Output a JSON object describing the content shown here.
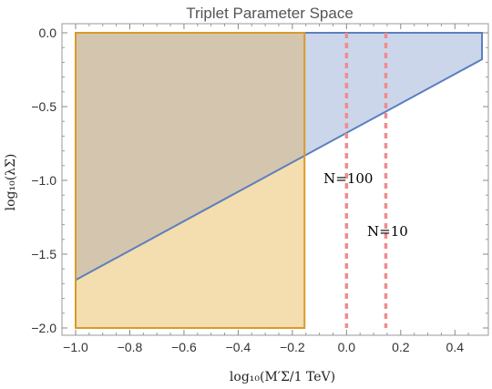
{
  "chart_data": {
    "type": "area",
    "title": "Triplet Parameter Space",
    "xlabel": "log₁₀(M′Σ/1 TeV)",
    "ylabel": "log₁₀(λΣ)",
    "xlim": [
      -1.0,
      0.5
    ],
    "ylim": [
      -2.0,
      0.0
    ],
    "x_ticks": [
      "-1.0",
      "-0.8",
      "-0.6",
      "-0.4",
      "-0.2",
      "0.0",
      "0.2",
      "0.4"
    ],
    "y_ticks": [
      "0.0",
      "-0.5",
      "-1.0",
      "-1.5",
      "-2.0"
    ],
    "x_tick_values": [
      -1.0,
      -0.8,
      -0.6,
      -0.4,
      -0.2,
      0.0,
      0.2,
      0.4
    ],
    "y_tick_values": [
      0.0,
      -0.5,
      -1.0,
      -1.5,
      -2.0
    ],
    "grid": false,
    "regions": [
      {
        "fill": "#c9d4ea",
        "stroke": "#5b7fbf",
        "polygon": [
          [
            -1.0,
            -1.675
          ],
          [
            0.5,
            -0.18
          ],
          [
            0.5,
            0.0
          ],
          [
            -1.0,
            0.0
          ]
        ]
      },
      {
        "fill": "#f3dbaa",
        "stroke": "#d89a2a",
        "polygon": [
          [
            -1.0,
            -2.0
          ],
          [
            -0.155,
            -2.0
          ],
          [
            -0.155,
            0.0
          ],
          [
            -1.0,
            0.0
          ]
        ]
      }
    ],
    "boundary_line": {
      "color": "#5b7fbf",
      "points": [
        [
          -1.0,
          -1.675
        ],
        [
          0.5,
          -0.18
        ]
      ]
    },
    "vertical_lines": [
      {
        "x": 0.0,
        "color": "#f08c8c",
        "label": "N=100",
        "label_y": -0.98
      },
      {
        "x": 0.145,
        "color": "#f08c8c",
        "label": "N=10",
        "label_y": -1.34
      }
    ]
  }
}
